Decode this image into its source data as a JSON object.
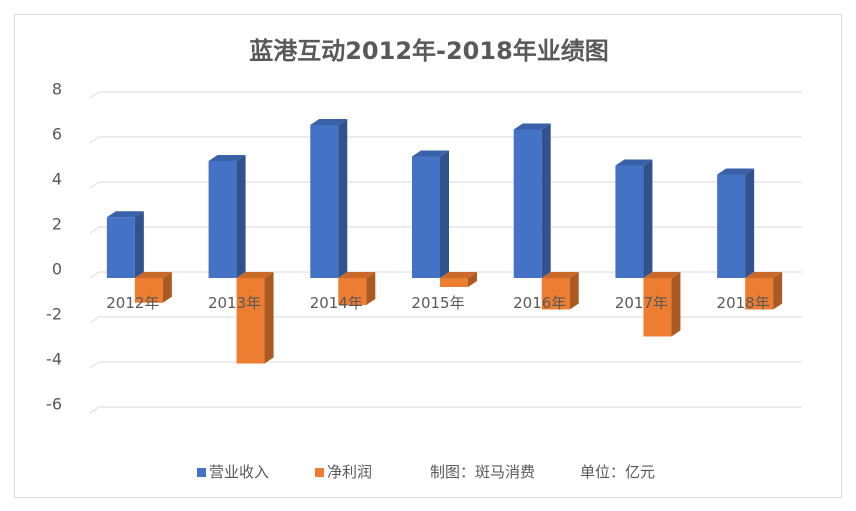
{
  "chart_data": {
    "type": "bar",
    "title": "蓝港互动2012年-2018年业绩图",
    "categories": [
      "2012年",
      "2013年",
      "2014年",
      "2015年",
      "2016年",
      "2017年",
      "2018年"
    ],
    "series": [
      {
        "name": "营业收入",
        "color": "#4472c4",
        "values": [
          2.7,
          5.2,
          6.8,
          5.4,
          6.6,
          5.0,
          4.6
        ]
      },
      {
        "name": "净利润",
        "color": "#ed7d31",
        "values": [
          -1.1,
          -3.8,
          -1.2,
          -0.4,
          -1.4,
          -2.6,
          -1.4
        ]
      }
    ],
    "yticks": [
      8,
      6,
      4,
      2,
      0,
      -2,
      -4,
      -6
    ],
    "ylim": [
      -6,
      8
    ],
    "grid": true,
    "legend_position": "bottom",
    "footer": {
      "maker": "制图：斑马消费",
      "unit": "单位：亿元"
    }
  }
}
